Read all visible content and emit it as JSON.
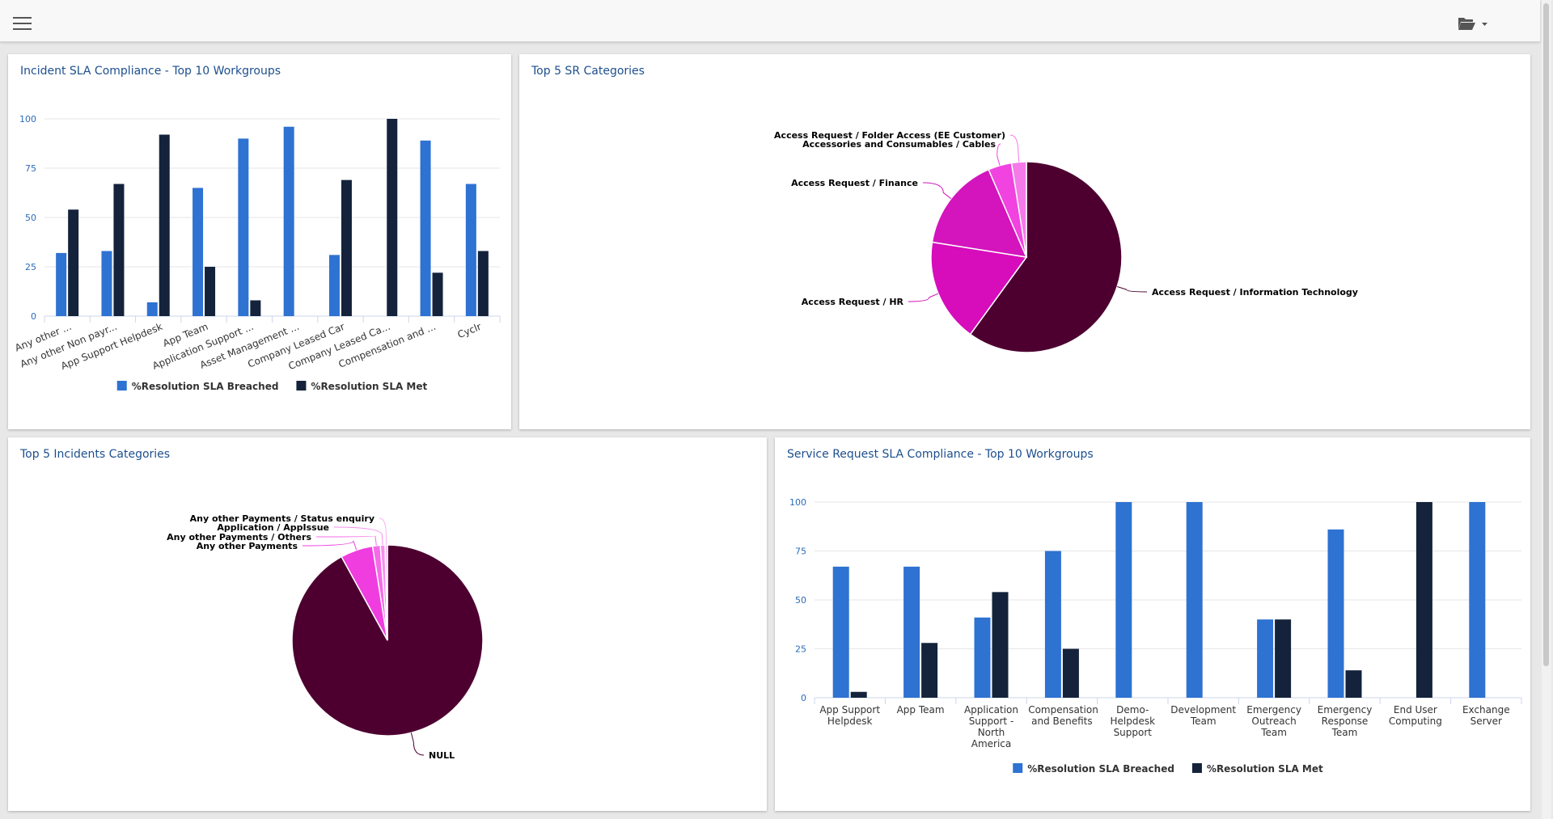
{
  "chart_data": [
    {
      "type": "bar",
      "title": "Incident SLA Compliance - Top 10 Workgroups",
      "categories": [
        "Any other ...",
        "Any other Non payr...",
        "App Support Helpdesk",
        "App Team",
        "Application Support ...",
        "Asset Management ...",
        "Company Leased Car",
        "Company Leased Ca...",
        "Compensation and ...",
        "Cyclr"
      ],
      "series": [
        {
          "name": "%Resolution SLA Breached",
          "color": "#2e72d2",
          "values": [
            32,
            33,
            7,
            65,
            90,
            96,
            31,
            0,
            89,
            67
          ]
        },
        {
          "name": "%Resolution SLA Met",
          "color": "#14233b",
          "values": [
            54,
            67,
            92,
            25,
            8,
            0,
            69,
            100,
            22,
            33
          ]
        }
      ],
      "ylim": [
        0,
        100
      ],
      "yticks": [
        0,
        25,
        50,
        75,
        100
      ],
      "grid": true
    },
    {
      "type": "pie",
      "title": "Top 5 SR Categories",
      "categories": [
        "Access Request / Information Technology",
        "Access Request / HR",
        "Access Request / Finance",
        "Accessories and Consumables / Cables",
        "Access Request / Folder Access (EE Customer)"
      ],
      "values": [
        60,
        17.5,
        16,
        4,
        2.5
      ],
      "colors": [
        "#4d0030",
        "#d70cbb",
        "#d414bd",
        "#f043e0",
        "#f57ae9"
      ]
    },
    {
      "type": "pie",
      "title": "Top 5 Incidents Categories",
      "categories": [
        "NULL",
        "Any other Payments",
        "Any other Payments / Others",
        "Application / AppIssue",
        "Any other Payments / Status enquiry"
      ],
      "values": [
        92,
        5.5,
        1.3,
        0.8,
        0.4
      ],
      "colors": [
        "#4d0030",
        "#f03ddf",
        "#f56ae8",
        "#f78fee",
        "#f9b0f2"
      ]
    },
    {
      "type": "bar",
      "title": "Service Request SLA Compliance - Top 10 Workgroups",
      "categories": [
        "App Support Helpdesk",
        "App Team",
        "Application Support - North America",
        "Compensation and Benefits",
        "Demo-Helpdesk Support",
        "Development Team",
        "Emergency Outreach Team",
        "Emergency Response Team",
        "End User Computing",
        "Exchange Server"
      ],
      "series": [
        {
          "name": "%Resolution SLA Breached",
          "color": "#2e72d2",
          "values": [
            67,
            67,
            41,
            75,
            100,
            100,
            40,
            86,
            0,
            100
          ]
        },
        {
          "name": "%Resolution SLA Met",
          "color": "#14233b",
          "values": [
            3,
            28,
            54,
            25,
            0,
            0,
            40,
            14,
            100,
            0
          ]
        }
      ],
      "ylim": [
        0,
        100
      ],
      "yticks": [
        0,
        25,
        50,
        75,
        100
      ],
      "grid": true
    }
  ]
}
